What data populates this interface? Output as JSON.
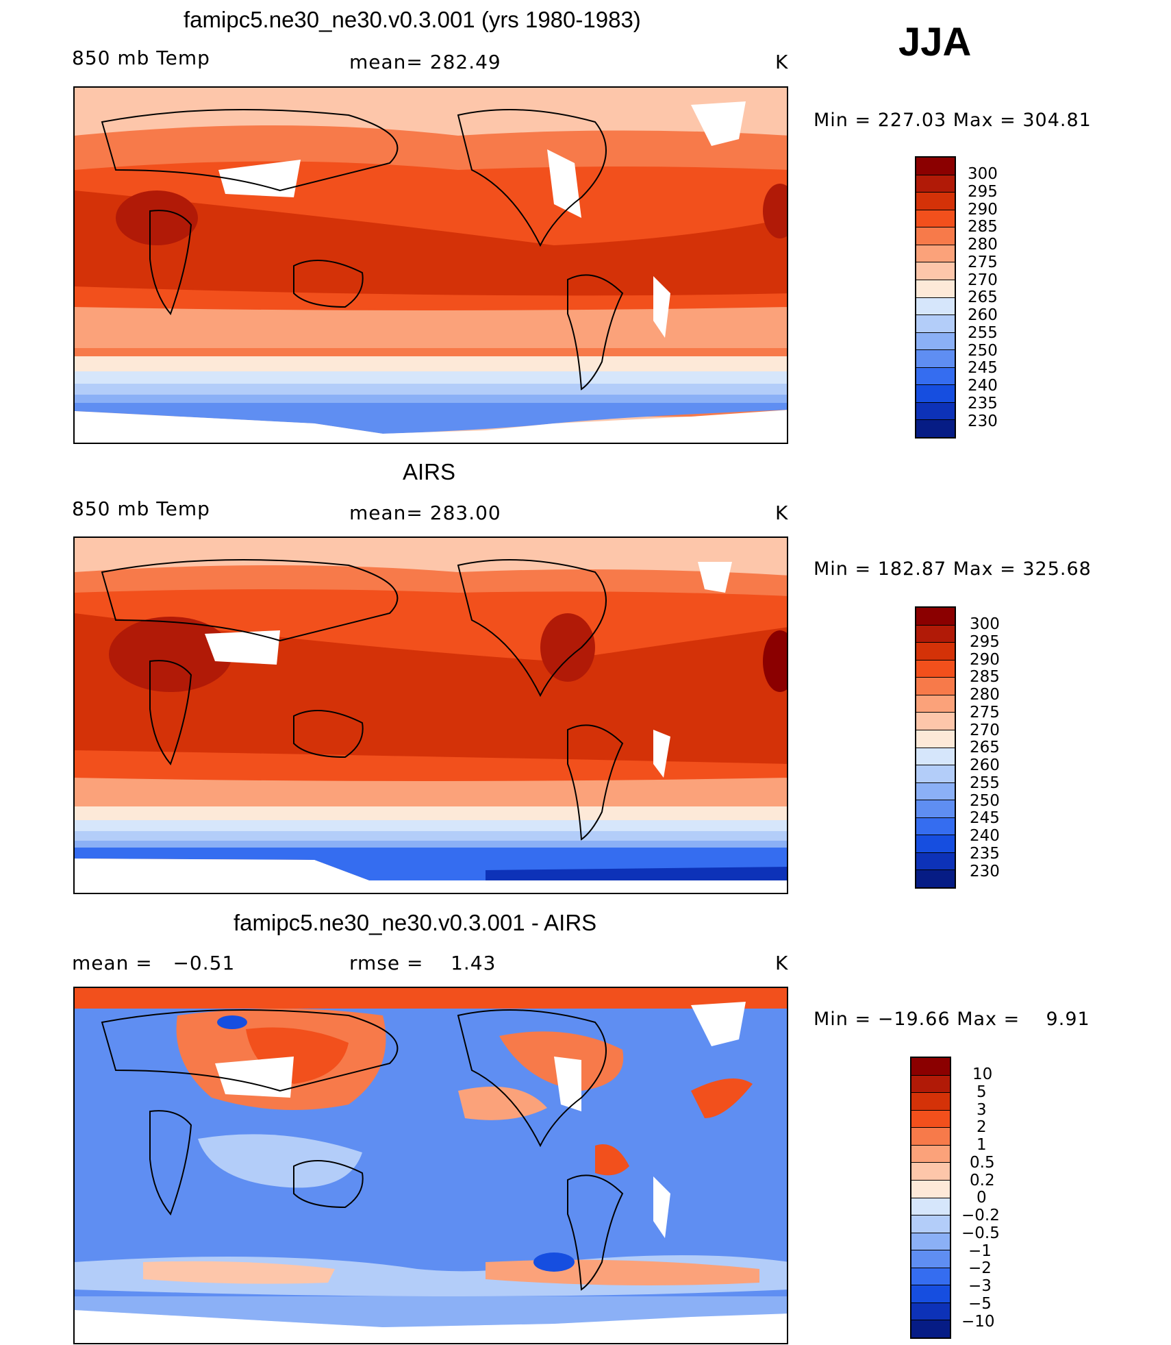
{
  "season": "JJA",
  "panels": [
    {
      "id": "model",
      "title": "famipc5.ne30_ne30.v0.3.001 (yrs 1980-1983)",
      "left_label": "850 mb Temp",
      "center_label": "mean= 282.49",
      "units": "K",
      "minmax": "Min = 227.03 Max = 304.81",
      "colorbar_levels": [
        "300",
        "295",
        "290",
        "285",
        "280",
        "275",
        "270",
        "265",
        "260",
        "255",
        "250",
        "245",
        "240",
        "235",
        "230"
      ],
      "colorbar_colors": [
        "#8b0000",
        "#b11a07",
        "#d43208",
        "#f2501c",
        "#f77a4a",
        "#fba27a",
        "#fdc6aa",
        "#fde9d8",
        "#d6e6fb",
        "#b3cdf9",
        "#8bb0f6",
        "#5f8ef2",
        "#356df0",
        "#164ee0",
        "#0d32b8",
        "#061c85"
      ]
    },
    {
      "id": "obs",
      "title": "AIRS",
      "left_label": "850 mb Temp",
      "center_label": "mean= 283.00",
      "units": "K",
      "minmax": "Min = 182.87 Max = 325.68",
      "colorbar_levels": [
        "300",
        "295",
        "290",
        "285",
        "280",
        "275",
        "270",
        "265",
        "260",
        "255",
        "250",
        "245",
        "240",
        "235",
        "230"
      ],
      "colorbar_colors": [
        "#8b0000",
        "#b11a07",
        "#d43208",
        "#f2501c",
        "#f77a4a",
        "#fba27a",
        "#fdc6aa",
        "#fde9d8",
        "#d6e6fb",
        "#b3cdf9",
        "#8bb0f6",
        "#5f8ef2",
        "#356df0",
        "#164ee0",
        "#0d32b8",
        "#061c85"
      ]
    },
    {
      "id": "diff",
      "title": "famipc5.ne30_ne30.v0.3.001 - AIRS",
      "left_label": "mean =   −0.51",
      "center_label": "rmse =    1.43",
      "units": "K",
      "minmax": "Min = −19.66 Max =    9.91",
      "colorbar_levels": [
        "10",
        "5",
        "3",
        "2",
        "1",
        "0.5",
        "0.2",
        "0",
        "−0.2",
        "−0.5",
        "−1",
        "−2",
        "−3",
        "−5",
        "−10"
      ],
      "colorbar_colors": [
        "#8b0000",
        "#b11a07",
        "#d43208",
        "#f2501c",
        "#f77a4a",
        "#fba27a",
        "#fdc6aa",
        "#fde9d8",
        "#d6e6fb",
        "#b3cdf9",
        "#8bb0f6",
        "#5f8ef2",
        "#356df0",
        "#164ee0",
        "#0d32b8",
        "#061c85"
      ]
    }
  ]
}
